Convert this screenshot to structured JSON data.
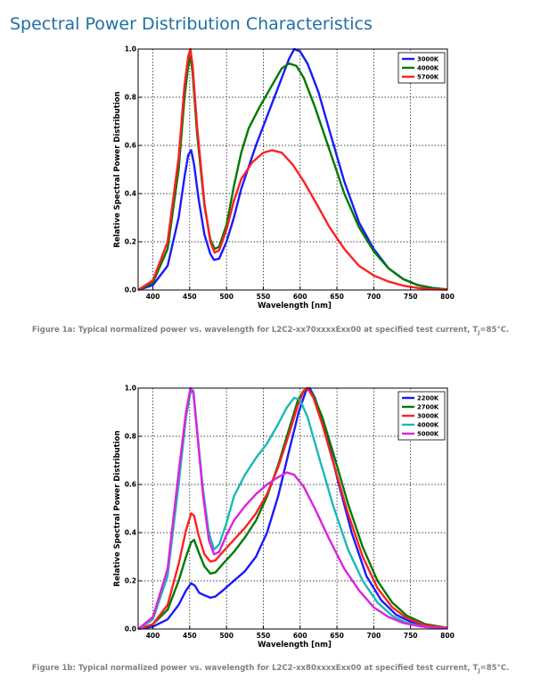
{
  "page": {
    "heading": "Spectral Power Distribution Characteristics"
  },
  "chart_data": [
    {
      "type": "line",
      "xlabel": "Wavelength [nm]",
      "ylabel": "Relative Spectral Power Distribution",
      "xlim": [
        380,
        800
      ],
      "ylim": [
        0,
        1.0
      ],
      "xticks": [
        400,
        450,
        500,
        550,
        600,
        650,
        700,
        750,
        800
      ],
      "yticks": [
        0.0,
        0.2,
        0.4,
        0.6,
        0.8,
        1.0
      ],
      "grid": true,
      "legend": "top-right",
      "caption": {
        "text": "Figure 1a: Typical normalized power vs. wavelength for L2C2-xx70xxxxExx00 at specified test current, T",
        "sub": "J",
        "suffix": "=85°C."
      },
      "series": [
        {
          "name": "3000K",
          "color": "#1a1aff",
          "points": [
            [
              380,
              0.0
            ],
            [
              400,
              0.02
            ],
            [
              420,
              0.1
            ],
            [
              435,
              0.3
            ],
            [
              443,
              0.47
            ],
            [
              448,
              0.56
            ],
            [
              452,
              0.58
            ],
            [
              456,
              0.52
            ],
            [
              462,
              0.38
            ],
            [
              470,
              0.23
            ],
            [
              478,
              0.15
            ],
            [
              483,
              0.125
            ],
            [
              490,
              0.13
            ],
            [
              500,
              0.2
            ],
            [
              510,
              0.3
            ],
            [
              520,
              0.42
            ],
            [
              540,
              0.6
            ],
            [
              560,
              0.76
            ],
            [
              575,
              0.88
            ],
            [
              585,
              0.96
            ],
            [
              592,
              1.0
            ],
            [
              600,
              0.99
            ],
            [
              610,
              0.94
            ],
            [
              625,
              0.82
            ],
            [
              640,
              0.66
            ],
            [
              660,
              0.45
            ],
            [
              680,
              0.28
            ],
            [
              700,
              0.17
            ],
            [
              720,
              0.09
            ],
            [
              740,
              0.045
            ],
            [
              760,
              0.02
            ],
            [
              780,
              0.008
            ],
            [
              800,
              0.002
            ]
          ]
        },
        {
          "name": "4000K",
          "color": "#007a00",
          "points": [
            [
              380,
              0.0
            ],
            [
              400,
              0.03
            ],
            [
              420,
              0.17
            ],
            [
              435,
              0.5
            ],
            [
              443,
              0.8
            ],
            [
              448,
              0.93
            ],
            [
              451,
              0.97
            ],
            [
              454,
              0.9
            ],
            [
              460,
              0.65
            ],
            [
              470,
              0.35
            ],
            [
              478,
              0.21
            ],
            [
              484,
              0.17
            ],
            [
              490,
              0.18
            ],
            [
              500,
              0.27
            ],
            [
              510,
              0.43
            ],
            [
              520,
              0.57
            ],
            [
              530,
              0.67
            ],
            [
              545,
              0.76
            ],
            [
              560,
              0.84
            ],
            [
              575,
              0.92
            ],
            [
              585,
              0.94
            ],
            [
              595,
              0.93
            ],
            [
              605,
              0.88
            ],
            [
              620,
              0.76
            ],
            [
              640,
              0.58
            ],
            [
              660,
              0.4
            ],
            [
              680,
              0.26
            ],
            [
              700,
              0.16
            ],
            [
              720,
              0.09
            ],
            [
              740,
              0.045
            ],
            [
              760,
              0.02
            ],
            [
              780,
              0.008
            ],
            [
              800,
              0.002
            ]
          ]
        },
        {
          "name": "5700K",
          "color": "#ff2020",
          "points": [
            [
              380,
              0.0
            ],
            [
              400,
              0.04
            ],
            [
              420,
              0.2
            ],
            [
              435,
              0.55
            ],
            [
              443,
              0.85
            ],
            [
              448,
              0.97
            ],
            [
              451,
              1.0
            ],
            [
              454,
              0.93
            ],
            [
              460,
              0.68
            ],
            [
              470,
              0.36
            ],
            [
              478,
              0.2
            ],
            [
              484,
              0.155
            ],
            [
              490,
              0.165
            ],
            [
              500,
              0.25
            ],
            [
              510,
              0.37
            ],
            [
              520,
              0.46
            ],
            [
              535,
              0.53
            ],
            [
              550,
              0.57
            ],
            [
              562,
              0.58
            ],
            [
              575,
              0.57
            ],
            [
              590,
              0.52
            ],
            [
              605,
              0.45
            ],
            [
              620,
              0.37
            ],
            [
              640,
              0.26
            ],
            [
              660,
              0.17
            ],
            [
              680,
              0.1
            ],
            [
              700,
              0.06
            ],
            [
              720,
              0.035
            ],
            [
              740,
              0.018
            ],
            [
              760,
              0.008
            ],
            [
              780,
              0.003
            ],
            [
              800,
              0.001
            ]
          ]
        }
      ]
    },
    {
      "type": "line",
      "xlabel": "Wavelength [nm]",
      "ylabel": "Relative Spectral Power Distribution",
      "xlim": [
        380,
        800
      ],
      "ylim": [
        0,
        1.0
      ],
      "xticks": [
        400,
        450,
        500,
        550,
        600,
        650,
        700,
        750,
        800
      ],
      "yticks": [
        0.0,
        0.2,
        0.4,
        0.6,
        0.8,
        1.0
      ],
      "grid": true,
      "legend": "top-right",
      "caption": {
        "text": "Figure 1b: Typical normalized power vs. wavelength for L2C2-xx80xxxxExx00 at specified test current, T",
        "sub": "J",
        "suffix": "=85°C."
      },
      "series": [
        {
          "name": "2200K",
          "color": "#1a1aff",
          "points": [
            [
              380,
              0.0
            ],
            [
              400,
              0.01
            ],
            [
              420,
              0.04
            ],
            [
              435,
              0.1
            ],
            [
              445,
              0.16
            ],
            [
              452,
              0.19
            ],
            [
              457,
              0.18
            ],
            [
              463,
              0.15
            ],
            [
              470,
              0.14
            ],
            [
              478,
              0.13
            ],
            [
              485,
              0.135
            ],
            [
              495,
              0.16
            ],
            [
              510,
              0.2
            ],
            [
              525,
              0.24
            ],
            [
              540,
              0.3
            ],
            [
              555,
              0.4
            ],
            [
              570,
              0.55
            ],
            [
              585,
              0.74
            ],
            [
              598,
              0.9
            ],
            [
              608,
              0.99
            ],
            [
              613,
              1.0
            ],
            [
              620,
              0.96
            ],
            [
              635,
              0.82
            ],
            [
              650,
              0.63
            ],
            [
              670,
              0.4
            ],
            [
              690,
              0.22
            ],
            [
              710,
              0.12
            ],
            [
              730,
              0.06
            ],
            [
              750,
              0.03
            ],
            [
              770,
              0.012
            ],
            [
              800,
              0.003
            ]
          ]
        },
        {
          "name": "2700K",
          "color": "#007a00",
          "points": [
            [
              380,
              0.0
            ],
            [
              400,
              0.02
            ],
            [
              420,
              0.08
            ],
            [
              435,
              0.2
            ],
            [
              445,
              0.3
            ],
            [
              452,
              0.36
            ],
            [
              456,
              0.37
            ],
            [
              462,
              0.32
            ],
            [
              470,
              0.26
            ],
            [
              478,
              0.23
            ],
            [
              485,
              0.235
            ],
            [
              495,
              0.27
            ],
            [
              510,
              0.32
            ],
            [
              525,
              0.38
            ],
            [
              540,
              0.45
            ],
            [
              555,
              0.55
            ],
            [
              570,
              0.68
            ],
            [
              585,
              0.83
            ],
            [
              597,
              0.95
            ],
            [
              605,
              0.99
            ],
            [
              610,
              1.0
            ],
            [
              618,
              0.97
            ],
            [
              630,
              0.88
            ],
            [
              645,
              0.73
            ],
            [
              665,
              0.52
            ],
            [
              685,
              0.34
            ],
            [
              705,
              0.2
            ],
            [
              725,
              0.11
            ],
            [
              745,
              0.055
            ],
            [
              770,
              0.02
            ],
            [
              800,
              0.005
            ]
          ]
        },
        {
          "name": "3000K",
          "color": "#ff2020",
          "points": [
            [
              380,
              0.0
            ],
            [
              400,
              0.02
            ],
            [
              420,
              0.1
            ],
            [
              435,
              0.27
            ],
            [
              445,
              0.41
            ],
            [
              452,
              0.48
            ],
            [
              456,
              0.47
            ],
            [
              462,
              0.39
            ],
            [
              470,
              0.31
            ],
            [
              478,
              0.28
            ],
            [
              485,
              0.285
            ],
            [
              495,
              0.32
            ],
            [
              510,
              0.37
            ],
            [
              525,
              0.42
            ],
            [
              540,
              0.48
            ],
            [
              555,
              0.56
            ],
            [
              570,
              0.67
            ],
            [
              585,
              0.81
            ],
            [
              597,
              0.93
            ],
            [
              605,
              0.99
            ],
            [
              610,
              1.0
            ],
            [
              618,
              0.96
            ],
            [
              630,
              0.85
            ],
            [
              645,
              0.69
            ],
            [
              665,
              0.48
            ],
            [
              685,
              0.3
            ],
            [
              705,
              0.17
            ],
            [
              725,
              0.09
            ],
            [
              745,
              0.045
            ],
            [
              770,
              0.015
            ],
            [
              800,
              0.004
            ]
          ]
        },
        {
          "name": "4000K",
          "color": "#1ab8b8",
          "points": [
            [
              380,
              0.0
            ],
            [
              400,
              0.04
            ],
            [
              420,
              0.22
            ],
            [
              435,
              0.6
            ],
            [
              445,
              0.88
            ],
            [
              451,
              0.98
            ],
            [
              455,
              0.99
            ],
            [
              460,
              0.83
            ],
            [
              468,
              0.58
            ],
            [
              476,
              0.4
            ],
            [
              483,
              0.33
            ],
            [
              490,
              0.35
            ],
            [
              500,
              0.44
            ],
            [
              510,
              0.55
            ],
            [
              525,
              0.64
            ],
            [
              540,
              0.71
            ],
            [
              555,
              0.77
            ],
            [
              570,
              0.85
            ],
            [
              582,
              0.92
            ],
            [
              592,
              0.96
            ],
            [
              600,
              0.95
            ],
            [
              610,
              0.88
            ],
            [
              625,
              0.72
            ],
            [
              645,
              0.51
            ],
            [
              665,
              0.33
            ],
            [
              685,
              0.2
            ],
            [
              705,
              0.11
            ],
            [
              725,
              0.055
            ],
            [
              745,
              0.025
            ],
            [
              770,
              0.008
            ],
            [
              800,
              0.002
            ]
          ]
        },
        {
          "name": "5000K",
          "color": "#dd22dd",
          "points": [
            [
              380,
              0.0
            ],
            [
              400,
              0.05
            ],
            [
              420,
              0.25
            ],
            [
              435,
              0.65
            ],
            [
              445,
              0.9
            ],
            [
              451,
              1.0
            ],
            [
              455,
              0.98
            ],
            [
              460,
              0.82
            ],
            [
              468,
              0.56
            ],
            [
              476,
              0.37
            ],
            [
              483,
              0.31
            ],
            [
              490,
              0.32
            ],
            [
              500,
              0.39
            ],
            [
              510,
              0.45
            ],
            [
              525,
              0.51
            ],
            [
              540,
              0.56
            ],
            [
              555,
              0.6
            ],
            [
              570,
              0.63
            ],
            [
              582,
              0.65
            ],
            [
              592,
              0.64
            ],
            [
              605,
              0.59
            ],
            [
              620,
              0.5
            ],
            [
              640,
              0.37
            ],
            [
              660,
              0.25
            ],
            [
              680,
              0.16
            ],
            [
              700,
              0.09
            ],
            [
              720,
              0.05
            ],
            [
              740,
              0.025
            ],
            [
              765,
              0.01
            ],
            [
              800,
              0.002
            ]
          ]
        }
      ]
    }
  ]
}
